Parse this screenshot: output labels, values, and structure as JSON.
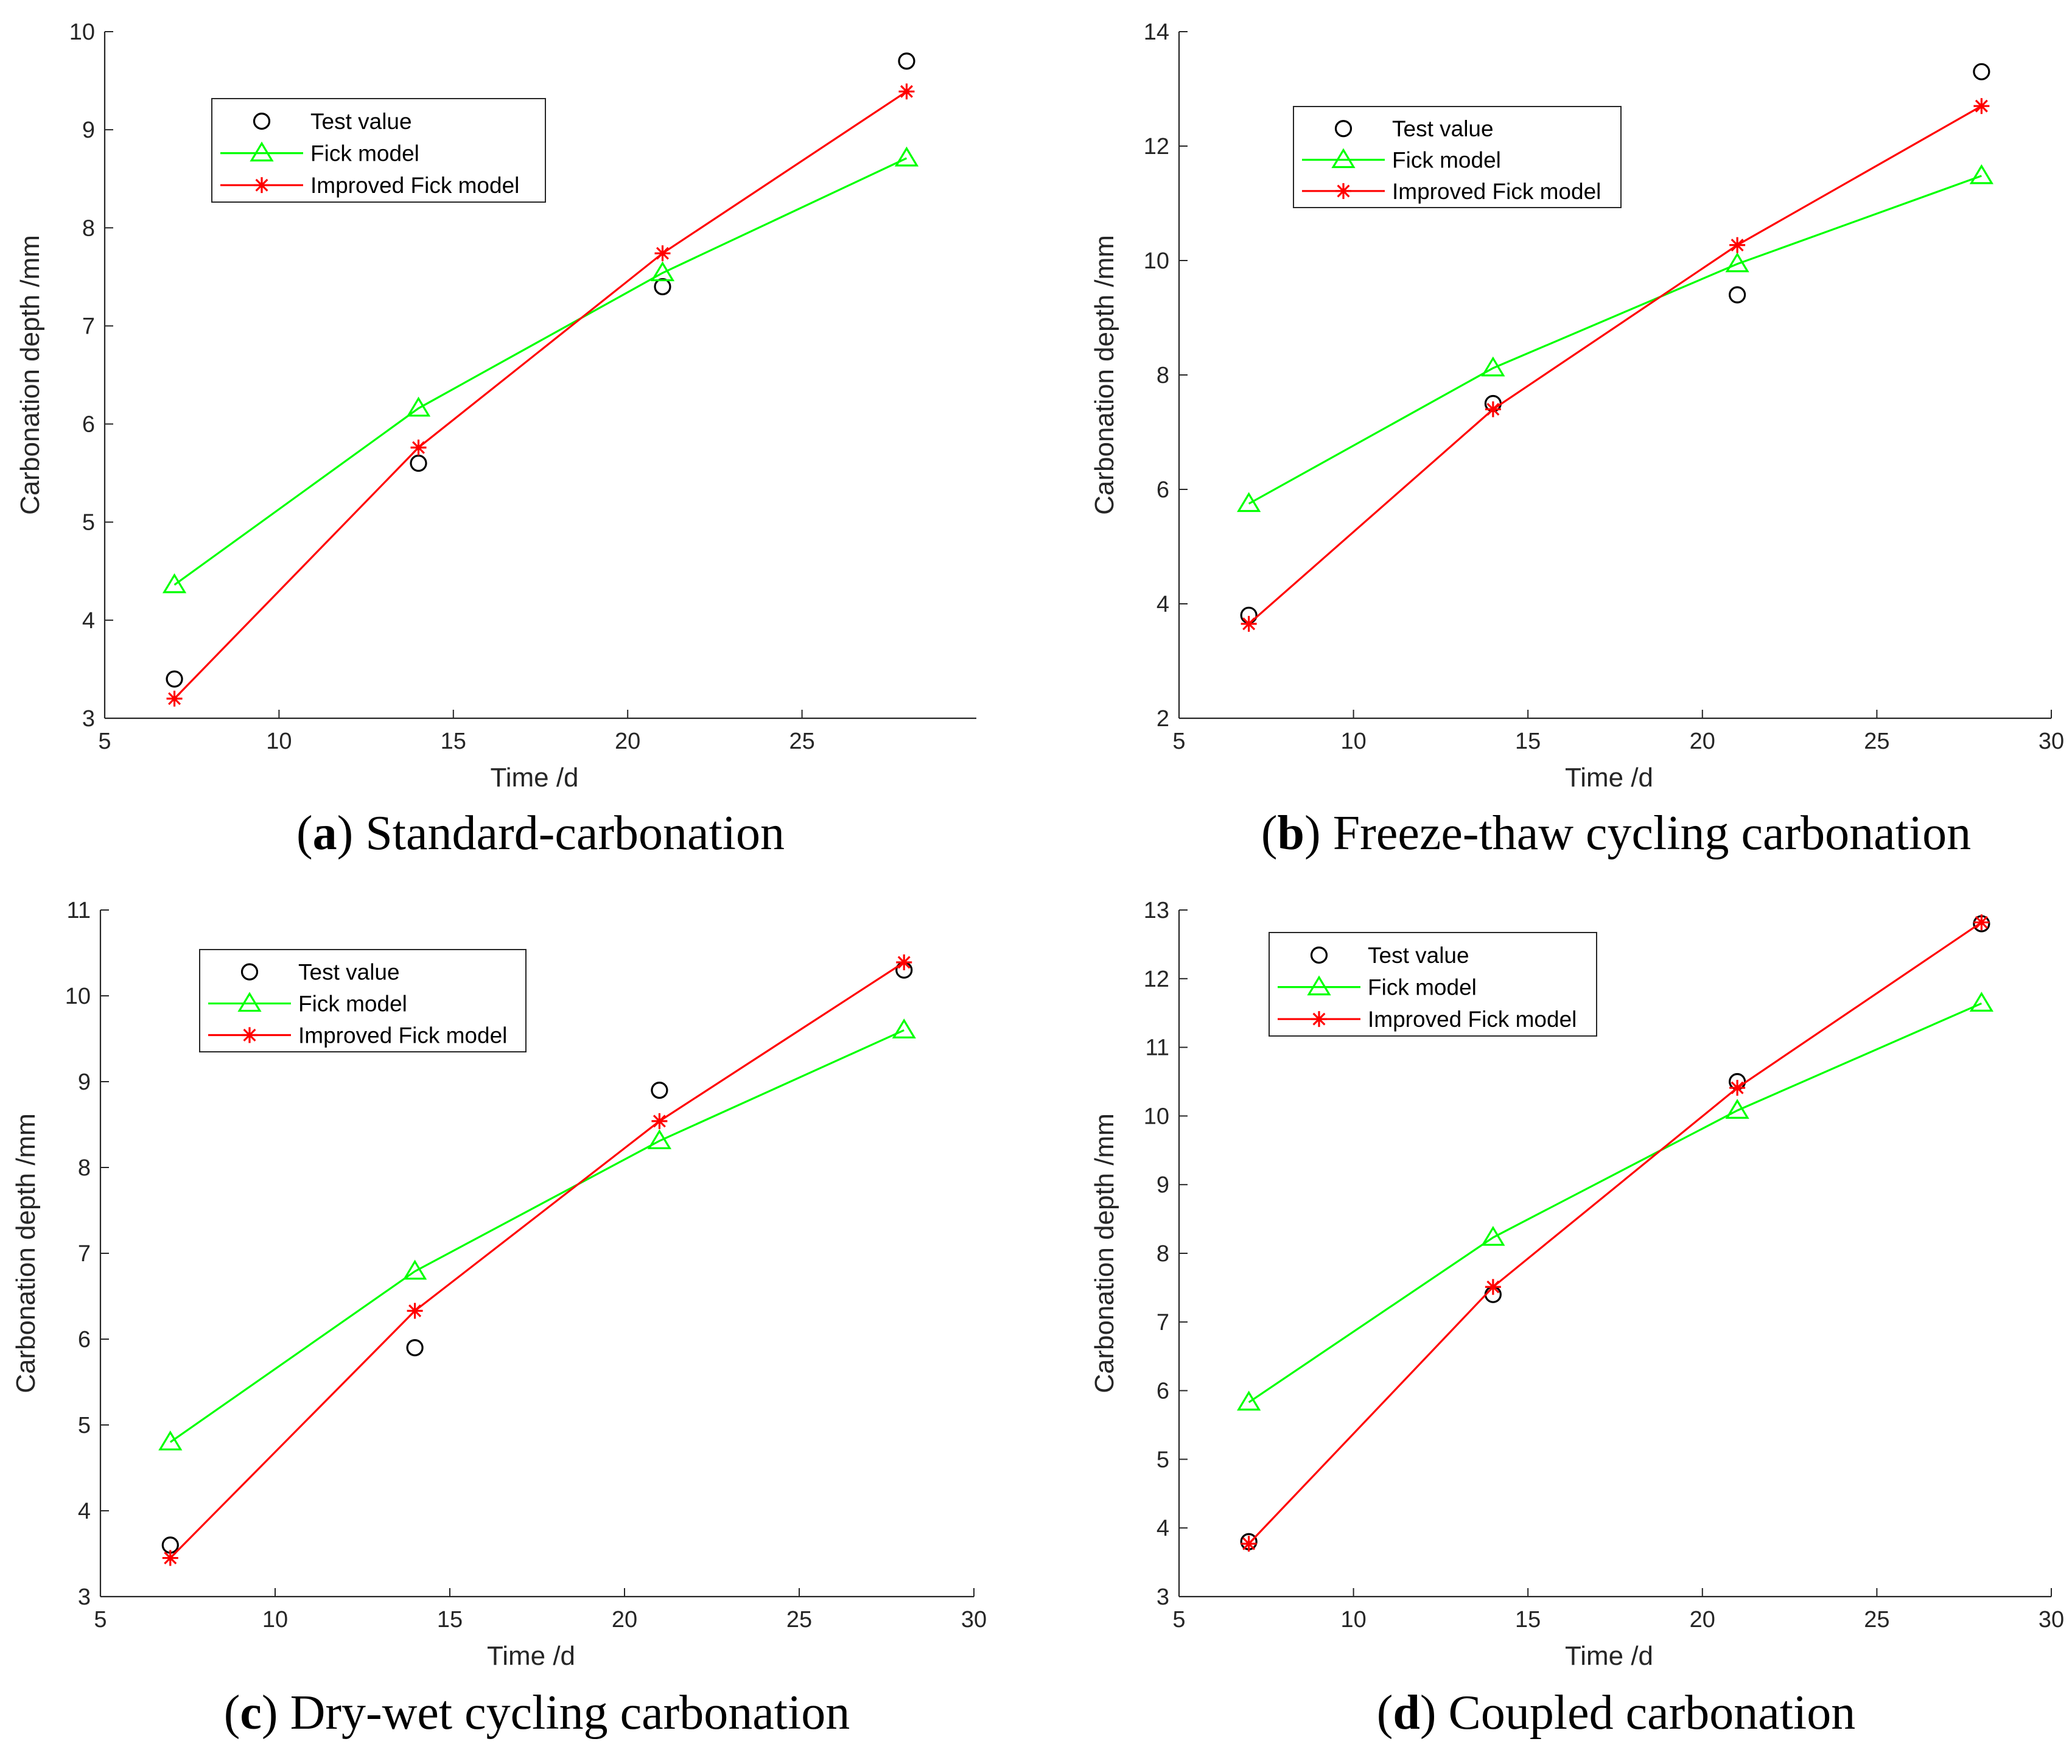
{
  "chart_data": [
    {
      "type": "line",
      "caption": {
        "letter": "a",
        "text": "Standard-carbonation"
      },
      "xlabel": "Time /d",
      "ylabel": "Carbonation depth /mm",
      "xlim": [
        5,
        30
      ],
      "ylim": [
        3,
        10
      ],
      "xticks": [
        5,
        10,
        15,
        20,
        25
      ],
      "yticks": [
        3,
        4,
        5,
        6,
        7,
        8,
        9,
        10
      ],
      "grid": false,
      "legend_position": "upper-left",
      "x": [
        7,
        14,
        21,
        28
      ],
      "series": [
        {
          "name": "Test value",
          "marker": "circle",
          "line": false,
          "color": "#000000",
          "values": [
            3.4,
            5.6,
            7.4,
            9.7
          ]
        },
        {
          "name": "Fick model",
          "marker": "triangle",
          "line": true,
          "color": "#00ff00",
          "values": [
            4.36,
            6.16,
            7.54,
            8.71
          ]
        },
        {
          "name": "Improved Fick model",
          "marker": "asterisk",
          "line": true,
          "color": "#ff0000",
          "values": [
            3.2,
            5.76,
            7.74,
            9.39
          ]
        }
      ]
    },
    {
      "type": "line",
      "caption": {
        "letter": "b",
        "text": "Freeze-thaw cycling carbonation"
      },
      "xlabel": "Time /d",
      "ylabel": "Carbonation depth /mm",
      "xlim": [
        5,
        30
      ],
      "ylim": [
        2,
        14
      ],
      "xticks": [
        5,
        10,
        15,
        20,
        25,
        30
      ],
      "yticks": [
        2,
        4,
        6,
        8,
        10,
        12,
        14
      ],
      "grid": false,
      "legend_position": "upper-left",
      "x": [
        7,
        14,
        21,
        28
      ],
      "series": [
        {
          "name": "Test value",
          "marker": "circle",
          "line": false,
          "color": "#000000",
          "values": [
            3.8,
            7.5,
            9.4,
            13.3
          ]
        },
        {
          "name": "Fick model",
          "marker": "triangle",
          "line": true,
          "color": "#00ff00",
          "values": [
            5.75,
            8.12,
            9.94,
            11.48
          ]
        },
        {
          "name": "Improved Fick model",
          "marker": "asterisk",
          "line": true,
          "color": "#ff0000",
          "values": [
            3.65,
            7.4,
            10.27,
            12.7
          ]
        }
      ]
    },
    {
      "type": "line",
      "caption": {
        "letter": "c",
        "text": "Dry-wet cycling carbonation"
      },
      "xlabel": "Time /d",
      "ylabel": "Carbonation depth /mm",
      "xlim": [
        5,
        30
      ],
      "ylim": [
        3,
        11
      ],
      "xticks": [
        5,
        10,
        15,
        20,
        25,
        30
      ],
      "yticks": [
        3,
        4,
        5,
        6,
        7,
        8,
        9,
        10,
        11
      ],
      "grid": false,
      "legend_position": "upper-left",
      "x": [
        7,
        14,
        21,
        28
      ],
      "series": [
        {
          "name": "Test value",
          "marker": "circle",
          "line": false,
          "color": "#000000",
          "values": [
            3.6,
            5.9,
            8.9,
            10.3
          ]
        },
        {
          "name": "Fick model",
          "marker": "triangle",
          "line": true,
          "color": "#00ff00",
          "values": [
            4.8,
            6.79,
            8.31,
            9.6
          ]
        },
        {
          "name": "Improved Fick model",
          "marker": "asterisk",
          "line": true,
          "color": "#ff0000",
          "values": [
            3.45,
            6.33,
            8.54,
            10.39
          ]
        }
      ]
    },
    {
      "type": "line",
      "caption": {
        "letter": "d",
        "text": "Coupled carbonation"
      },
      "xlabel": "Time /d",
      "ylabel": "Carbonation depth /mm",
      "xlim": [
        5,
        30
      ],
      "ylim": [
        3,
        13
      ],
      "xticks": [
        5,
        10,
        15,
        20,
        25,
        30
      ],
      "yticks": [
        3,
        4,
        5,
        6,
        7,
        8,
        9,
        10,
        11,
        12,
        13
      ],
      "grid": false,
      "legend_position": "upper-left",
      "x": [
        7,
        14,
        21,
        28
      ],
      "series": [
        {
          "name": "Test value",
          "marker": "circle",
          "line": false,
          "color": "#000000",
          "values": [
            3.8,
            7.4,
            10.5,
            12.8
          ]
        },
        {
          "name": "Fick model",
          "marker": "triangle",
          "line": true,
          "color": "#00ff00",
          "values": [
            5.83,
            8.23,
            10.08,
            11.64
          ]
        },
        {
          "name": "Improved Fick model",
          "marker": "asterisk",
          "line": true,
          "color": "#ff0000",
          "values": [
            3.77,
            7.51,
            10.41,
            12.82
          ]
        }
      ]
    }
  ]
}
